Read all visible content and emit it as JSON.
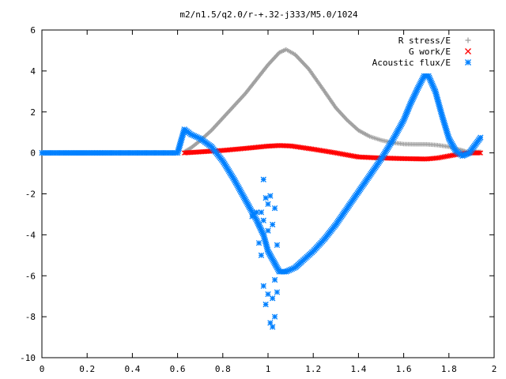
{
  "chart_data": {
    "type": "scatter",
    "title": "m2/n1.5/q2.0/r-+.32-j333/M5.0/1024",
    "xlabel": "",
    "ylabel": "",
    "xlim": [
      0,
      2
    ],
    "ylim": [
      -10,
      6
    ],
    "xticks": [
      "0",
      "0.2",
      "0.4",
      "0.6",
      "0.8",
      "1",
      "1.2",
      "1.4",
      "1.6",
      "1.8",
      "2"
    ],
    "yticks": [
      "-10",
      "-8",
      "-6",
      "-4",
      "-2",
      "0",
      "2",
      "4",
      "6"
    ],
    "grid": false,
    "legend_position": "top-right",
    "series": [
      {
        "name": "R stress/E",
        "marker": "+",
        "color": "#a0a0a0",
        "points": [
          [
            0.63,
            0.05
          ],
          [
            0.66,
            0.25
          ],
          [
            0.7,
            0.6
          ],
          [
            0.75,
            1.1
          ],
          [
            0.8,
            1.7
          ],
          [
            0.85,
            2.3
          ],
          [
            0.9,
            2.9
          ],
          [
            0.95,
            3.6
          ],
          [
            1.0,
            4.3
          ],
          [
            1.05,
            4.9
          ],
          [
            1.08,
            5.05
          ],
          [
            1.12,
            4.8
          ],
          [
            1.18,
            4.1
          ],
          [
            1.25,
            3.0
          ],
          [
            1.3,
            2.2
          ],
          [
            1.35,
            1.6
          ],
          [
            1.4,
            1.1
          ],
          [
            1.45,
            0.8
          ],
          [
            1.5,
            0.62
          ],
          [
            1.55,
            0.5
          ],
          [
            1.6,
            0.43
          ],
          [
            1.65,
            0.42
          ],
          [
            1.7,
            0.42
          ],
          [
            1.75,
            0.38
          ],
          [
            1.8,
            0.3
          ],
          [
            1.85,
            0.15
          ],
          [
            1.88,
            0.05
          ],
          [
            1.92,
            0.05
          ],
          [
            1.94,
            0.05
          ]
        ]
      },
      {
        "name": "G work/E",
        "marker": "x",
        "color": "#ff0000",
        "points": [
          [
            0.63,
            0.0
          ],
          [
            0.7,
            0.05
          ],
          [
            0.8,
            0.12
          ],
          [
            0.9,
            0.22
          ],
          [
            1.0,
            0.33
          ],
          [
            1.05,
            0.36
          ],
          [
            1.1,
            0.34
          ],
          [
            1.2,
            0.18
          ],
          [
            1.3,
            0.0
          ],
          [
            1.4,
            -0.2
          ],
          [
            1.5,
            -0.25
          ],
          [
            1.6,
            -0.28
          ],
          [
            1.7,
            -0.3
          ],
          [
            1.75,
            -0.25
          ],
          [
            1.8,
            -0.15
          ],
          [
            1.85,
            -0.05
          ],
          [
            1.9,
            0.0
          ],
          [
            1.94,
            0.0
          ]
        ]
      },
      {
        "name": "Acoustic flux/E",
        "marker": "*",
        "color": "#0080ff",
        "points": [
          [
            0.0,
            0.0
          ],
          [
            0.1,
            0.0
          ],
          [
            0.2,
            0.0
          ],
          [
            0.3,
            0.0
          ],
          [
            0.4,
            0.0
          ],
          [
            0.5,
            0.0
          ],
          [
            0.6,
            0.0
          ],
          [
            0.63,
            1.15
          ],
          [
            0.66,
            0.9
          ],
          [
            0.7,
            0.7
          ],
          [
            0.75,
            0.3
          ],
          [
            0.8,
            -0.4
          ],
          [
            0.85,
            -1.3
          ],
          [
            0.9,
            -2.3
          ],
          [
            0.95,
            -3.3
          ],
          [
            0.98,
            -4.0
          ],
          [
            1.0,
            -4.8
          ],
          [
            1.03,
            -5.4
          ],
          [
            1.05,
            -5.8
          ],
          [
            1.08,
            -5.8
          ],
          [
            1.12,
            -5.6
          ],
          [
            1.15,
            -5.3
          ],
          [
            1.2,
            -4.8
          ],
          [
            1.25,
            -4.2
          ],
          [
            1.3,
            -3.5
          ],
          [
            1.35,
            -2.7
          ],
          [
            1.4,
            -1.9
          ],
          [
            1.45,
            -1.1
          ],
          [
            1.5,
            -0.3
          ],
          [
            1.55,
            0.6
          ],
          [
            1.6,
            1.6
          ],
          [
            1.63,
            2.4
          ],
          [
            1.66,
            3.1
          ],
          [
            1.69,
            3.75
          ],
          [
            1.71,
            3.75
          ],
          [
            1.74,
            3.0
          ],
          [
            1.77,
            1.8
          ],
          [
            1.8,
            0.7
          ],
          [
            1.83,
            0.1
          ],
          [
            1.86,
            -0.15
          ],
          [
            1.89,
            0.0
          ],
          [
            1.91,
            0.3
          ],
          [
            1.94,
            0.75
          ],
          [
            0.93,
            -3.1
          ],
          [
            0.95,
            -2.9
          ],
          [
            0.96,
            -3.5
          ],
          [
            0.96,
            -4.4
          ],
          [
            0.97,
            -5.0
          ],
          [
            0.97,
            -2.9
          ],
          [
            0.98,
            -1.3
          ],
          [
            0.98,
            -3.3
          ],
          [
            0.98,
            -6.5
          ],
          [
            0.99,
            -2.2
          ],
          [
            0.99,
            -7.4
          ],
          [
            1.0,
            -6.9
          ],
          [
            1.0,
            -3.8
          ],
          [
            1.0,
            -2.5
          ],
          [
            1.01,
            -8.3
          ],
          [
            1.01,
            -2.1
          ],
          [
            1.02,
            -7.1
          ],
          [
            1.02,
            -3.5
          ],
          [
            1.02,
            -8.5
          ],
          [
            1.03,
            -6.2
          ],
          [
            1.03,
            -2.7
          ],
          [
            1.03,
            -8.0
          ],
          [
            1.04,
            -4.5
          ],
          [
            1.04,
            -6.8
          ]
        ]
      }
    ]
  }
}
